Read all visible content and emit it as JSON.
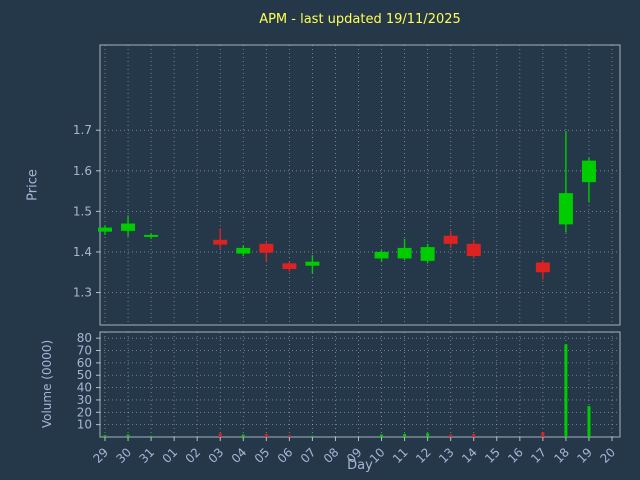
{
  "colors": {
    "background": "#253849",
    "title": "#ffff54",
    "label": "#a8b4d4",
    "grid": "#c8d0dc",
    "spine": "#b6c0cc",
    "up": "#00cc00",
    "down": "#dd2222"
  },
  "chart_data": [
    {
      "type": "candlestick",
      "title": "APM - last updated 19/11/2025",
      "xlabel": "Day",
      "ylabel": "Price",
      "ylim": [
        1.22,
        1.91
      ],
      "yticks": [
        "1.3",
        "1.4",
        "1.5",
        "1.6",
        "1.7"
      ],
      "xticklabels": [
        "29",
        "30",
        "31",
        "01",
        "02",
        "03",
        "04",
        "05",
        "06",
        "07",
        "08",
        "09",
        "10",
        "11",
        "12",
        "13",
        "14",
        "15",
        "16",
        "17",
        "18",
        "19",
        "20"
      ],
      "candles": [
        {
          "day": "29",
          "open": 1.45,
          "close": 1.46,
          "high": 1.465,
          "low": 1.442
        },
        {
          "day": "30",
          "open": 1.452,
          "close": 1.47,
          "high": 1.49,
          "low": 1.438
        },
        {
          "day": "31",
          "open": 1.438,
          "close": 1.442,
          "high": 1.446,
          "low": 1.432
        },
        {
          "day": "03",
          "open": 1.43,
          "close": 1.418,
          "high": 1.458,
          "low": 1.408
        },
        {
          "day": "04",
          "open": 1.396,
          "close": 1.41,
          "high": 1.416,
          "low": 1.39
        },
        {
          "day": "05",
          "open": 1.42,
          "close": 1.398,
          "high": 1.424,
          "low": 1.378
        },
        {
          "day": "06",
          "open": 1.372,
          "close": 1.358,
          "high": 1.376,
          "low": 1.352
        },
        {
          "day": "07",
          "open": 1.366,
          "close": 1.376,
          "high": 1.392,
          "low": 1.348
        },
        {
          "day": "10",
          "open": 1.384,
          "close": 1.4,
          "high": 1.404,
          "low": 1.376
        },
        {
          "day": "11",
          "open": 1.384,
          "close": 1.41,
          "high": 1.432,
          "low": 1.38
        },
        {
          "day": "12",
          "open": 1.378,
          "close": 1.412,
          "high": 1.42,
          "low": 1.372
        },
        {
          "day": "13",
          "open": 1.44,
          "close": 1.42,
          "high": 1.452,
          "low": 1.41
        },
        {
          "day": "14",
          "open": 1.42,
          "close": 1.39,
          "high": 1.43,
          "low": 1.384
        },
        {
          "day": "17",
          "open": 1.374,
          "close": 1.35,
          "high": 1.38,
          "low": 1.332
        },
        {
          "day": "18",
          "open": 1.468,
          "close": 1.545,
          "high": 1.698,
          "low": 1.448
        },
        {
          "day": "19",
          "open": 1.572,
          "close": 1.625,
          "high": 1.632,
          "low": 1.522
        }
      ]
    },
    {
      "type": "bar",
      "ylabel": "Volume (0000)",
      "ylim": [
        0,
        85
      ],
      "yticks": [
        "10",
        "20",
        "30",
        "40",
        "50",
        "60",
        "70",
        "80"
      ],
      "bars": [
        {
          "day": "29",
          "value": 1.5
        },
        {
          "day": "30",
          "value": 2
        },
        {
          "day": "31",
          "value": 1
        },
        {
          "day": "03",
          "value": 3
        },
        {
          "day": "04",
          "value": 2
        },
        {
          "day": "05",
          "value": 2.5
        },
        {
          "day": "06",
          "value": 1.5
        },
        {
          "day": "07",
          "value": 1
        },
        {
          "day": "10",
          "value": 2
        },
        {
          "day": "11",
          "value": 2.5
        },
        {
          "day": "12",
          "value": 3
        },
        {
          "day": "13",
          "value": 2
        },
        {
          "day": "14",
          "value": 2.5
        },
        {
          "day": "17",
          "value": 4
        },
        {
          "day": "18",
          "value": 75
        },
        {
          "day": "19",
          "value": 25
        }
      ]
    }
  ]
}
